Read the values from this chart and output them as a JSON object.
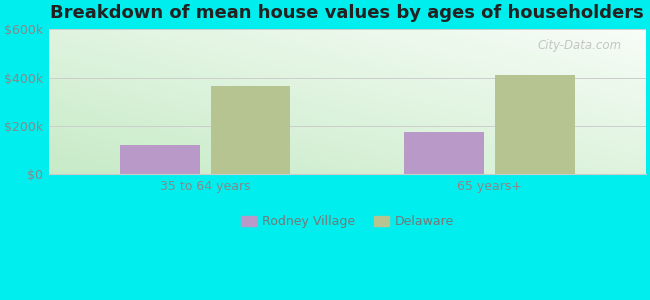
{
  "title": "Breakdown of mean house values by ages of householders",
  "categories": [
    "35 to 64 years",
    "65 years+"
  ],
  "series": {
    "Rodney Village": [
      120000,
      175000
    ],
    "Delaware": [
      365000,
      410000
    ]
  },
  "bar_colors": {
    "Rodney Village": "#b899c8",
    "Delaware": "#b5c490"
  },
  "ylim": [
    0,
    600000
  ],
  "yticks": [
    0,
    200000,
    400000,
    600000
  ],
  "ytick_labels": [
    "$0",
    "$200k",
    "$400k",
    "$600k"
  ],
  "background_color": "#00eeee",
  "grad_color_topleft": "#d6edd6",
  "grad_color_topright": "#e8f0e8",
  "grad_color_bottom": "#c8e8c8",
  "title_fontsize": 13,
  "tick_fontsize": 9,
  "legend_fontsize": 9,
  "bar_width": 0.28,
  "watermark": "City-Data.com"
}
